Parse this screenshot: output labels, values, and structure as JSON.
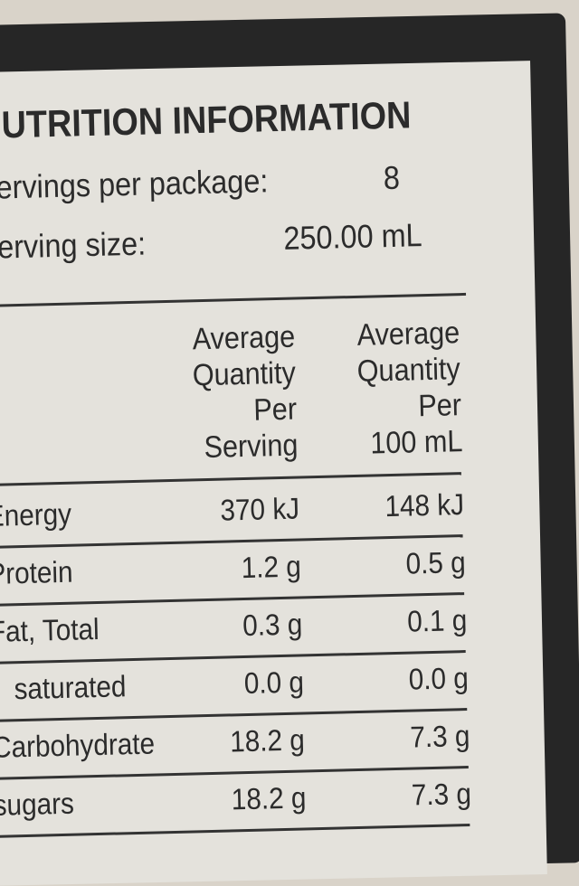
{
  "header": {
    "title": "NUTRITION INFORMATION",
    "servings_label": "Servings per package:",
    "servings_value": "8",
    "serving_size_label": "Serving size:",
    "serving_size_value": "250.00 mL"
  },
  "table": {
    "columns": [
      [
        "Average",
        "Quantity",
        "Per",
        "Serving"
      ],
      [
        "Average",
        "Quantity",
        "Per",
        "100 mL"
      ]
    ],
    "rows": [
      [
        "Energy",
        "370 kJ",
        "148 kJ"
      ],
      [
        "Protein",
        "1.2 g",
        "0.5 g"
      ],
      [
        "Fat, Total",
        "0.3 g",
        "0.1 g"
      ],
      [
        "saturated",
        "0.0 g",
        "0.0 g"
      ],
      [
        "Carbohydrate",
        "18.2 g",
        "7.3 g"
      ],
      [
        "sugars",
        "18.2 g",
        "7.3 g"
      ]
    ]
  }
}
